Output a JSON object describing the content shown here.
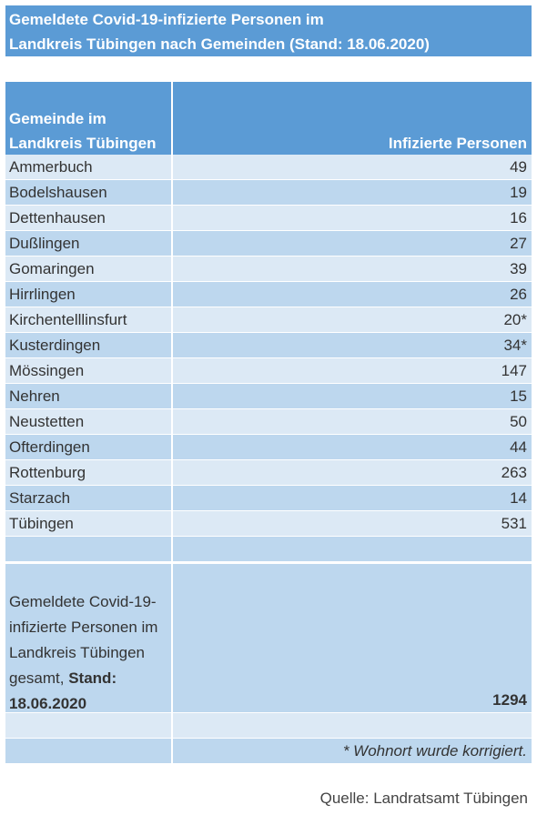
{
  "title": {
    "line1": "Gemeldete Covid-19-infizierte Personen im",
    "line2": "Landkreis Tübingen nach Gemeinden (Stand: 18.06.2020)"
  },
  "table": {
    "headers": {
      "col1": "Gemeinde im Landkreis Tübingen",
      "col2": "Infizierte Personen"
    },
    "rows": [
      {
        "gemeinde": "Ammerbuch",
        "value": "49"
      },
      {
        "gemeinde": "Bodelshausen",
        "value": "19"
      },
      {
        "gemeinde": "Dettenhausen",
        "value": "16"
      },
      {
        "gemeinde": "Dußlingen",
        "value": "27"
      },
      {
        "gemeinde": "Gomaringen",
        "value": "39"
      },
      {
        "gemeinde": "Hirrlingen",
        "value": "26"
      },
      {
        "gemeinde": "Kirchentelllinsfurt",
        "value": "20*"
      },
      {
        "gemeinde": "Kusterdingen",
        "value": "34*"
      },
      {
        "gemeinde": "Mössingen",
        "value": "147"
      },
      {
        "gemeinde": "Nehren",
        "value": "15"
      },
      {
        "gemeinde": "Neustetten",
        "value": "50"
      },
      {
        "gemeinde": "Ofterdingen",
        "value": "44"
      },
      {
        "gemeinde": "Rottenburg",
        "value": "263"
      },
      {
        "gemeinde": "Starzach",
        "value": "14"
      },
      {
        "gemeinde": "Tübingen",
        "value": "531"
      }
    ],
    "total": {
      "label": "Gemeldete Covid-19-infizierte Personen im Landkreis Tübingen gesamt,",
      "label_bold": "Stand: 18.06.2020",
      "value": "1294"
    },
    "footnote": "* Wohnort wurde korrigiert."
  },
  "source": "Quelle: Landratsamt Tübingen",
  "colors": {
    "header_blue": "#5b9bd5",
    "row_light": "#dce9f5",
    "row_dark": "#bdd7ee"
  }
}
